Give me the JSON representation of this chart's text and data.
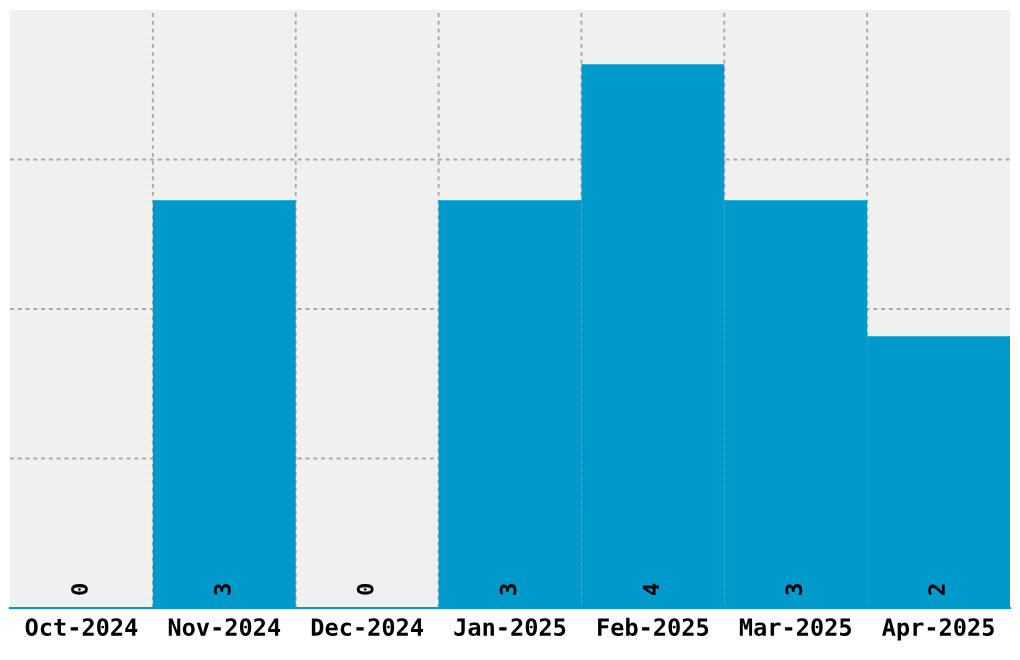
{
  "chart_data": {
    "type": "bar",
    "categories": [
      "Oct-2024",
      "Nov-2024",
      "Dec-2024",
      "Jan-2025",
      "Feb-2025",
      "Mar-2025",
      "Apr-2025"
    ],
    "values": [
      0,
      3,
      0,
      3,
      4,
      3,
      2
    ],
    "color": "#0099cc",
    "ylim": [
      0,
      4.4
    ],
    "yticks": [
      {
        "value": 1.1,
        "label": null
      },
      {
        "value": 2.2,
        "label": null
      },
      {
        "value": 3.3,
        "label": null
      }
    ],
    "tick_labels": "x",
    "grid": true,
    "data_labels": true
  }
}
